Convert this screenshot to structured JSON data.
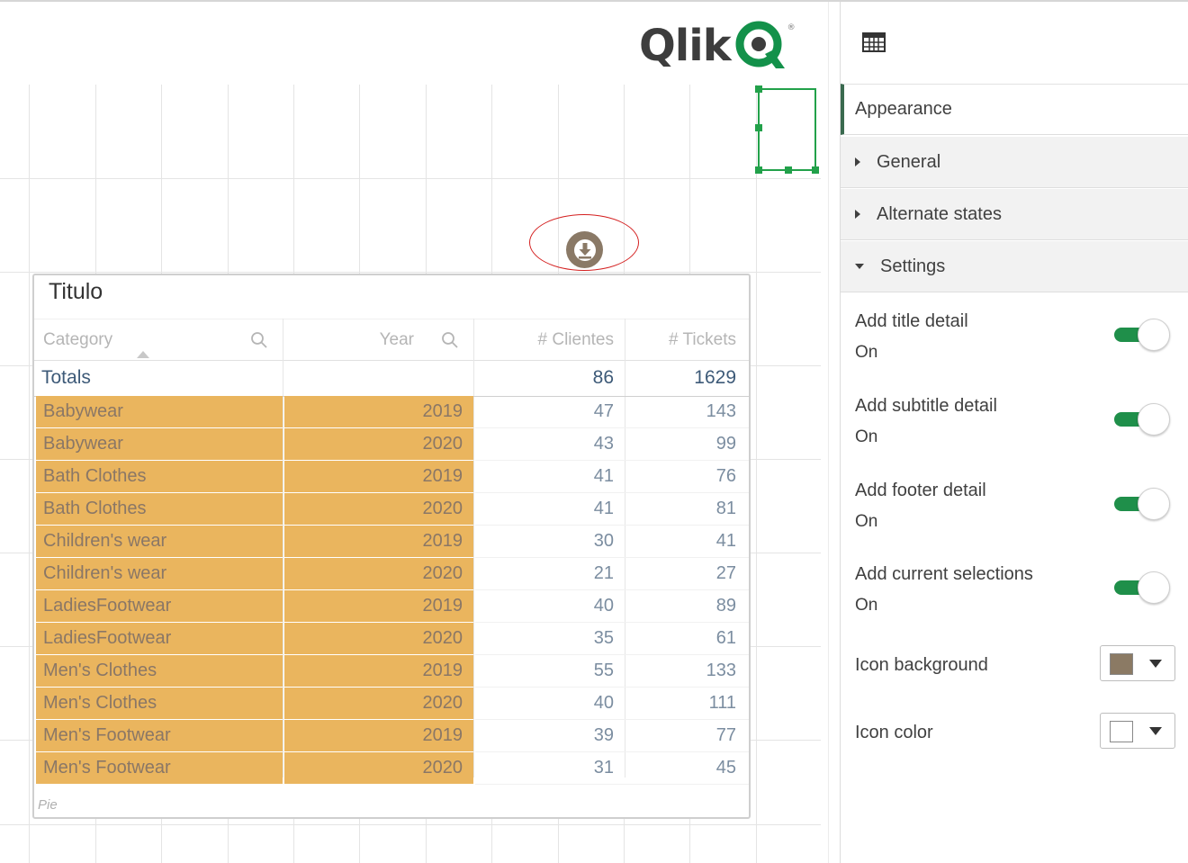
{
  "logo": {
    "text": "Qlik",
    "registered": "®"
  },
  "table": {
    "title": "Titulo",
    "columns": [
      "Category",
      "Year",
      "# Clientes",
      "# Tickets"
    ],
    "totals": {
      "label": "Totals",
      "clientes": "86",
      "tickets": "1629"
    },
    "rows": [
      {
        "category": "Babywear",
        "year": "2019",
        "clientes": "47",
        "tickets": "143"
      },
      {
        "category": "Babywear",
        "year": "2020",
        "clientes": "43",
        "tickets": "99"
      },
      {
        "category": "Bath Clothes",
        "year": "2019",
        "clientes": "41",
        "tickets": "76"
      },
      {
        "category": "Bath Clothes",
        "year": "2020",
        "clientes": "41",
        "tickets": "81"
      },
      {
        "category": "Children's wear",
        "year": "2019",
        "clientes": "30",
        "tickets": "41"
      },
      {
        "category": "Children's wear",
        "year": "2020",
        "clientes": "21",
        "tickets": "27"
      },
      {
        "category": "LadiesFootwear",
        "year": "2019",
        "clientes": "40",
        "tickets": "89"
      },
      {
        "category": "LadiesFootwear",
        "year": "2020",
        "clientes": "35",
        "tickets": "61"
      },
      {
        "category": "Men's Clothes",
        "year": "2019",
        "clientes": "55",
        "tickets": "133"
      },
      {
        "category": "Men's Clothes",
        "year": "2020",
        "clientes": "40",
        "tickets": "111"
      },
      {
        "category": "Men's Footwear",
        "year": "2019",
        "clientes": "39",
        "tickets": "77"
      },
      {
        "category": "Men's Footwear",
        "year": "2020",
        "clientes": "31",
        "tickets": "45"
      }
    ],
    "footer": "Pie",
    "selection_color": "#eab55e"
  },
  "download_button": {
    "icon": "download-icon",
    "color": "#8a7966"
  },
  "panel": {
    "header_icon": "table-icon",
    "tab": "Appearance",
    "sections": [
      "General",
      "Alternate states",
      "Settings"
    ],
    "settings": [
      {
        "label": "Add title detail",
        "value": "On",
        "enabled": true
      },
      {
        "label": "Add subtitle detail",
        "value": "On",
        "enabled": true
      },
      {
        "label": "Add footer detail",
        "value": "On",
        "enabled": true
      },
      {
        "label": "Add current selections",
        "value": "On",
        "enabled": true
      }
    ],
    "icon_background": {
      "label": "Icon background",
      "color": "#8b7a64"
    },
    "icon_color": {
      "label": "Icon color",
      "color": "#ffffff"
    }
  },
  "accent_color": "#1f8f4a"
}
